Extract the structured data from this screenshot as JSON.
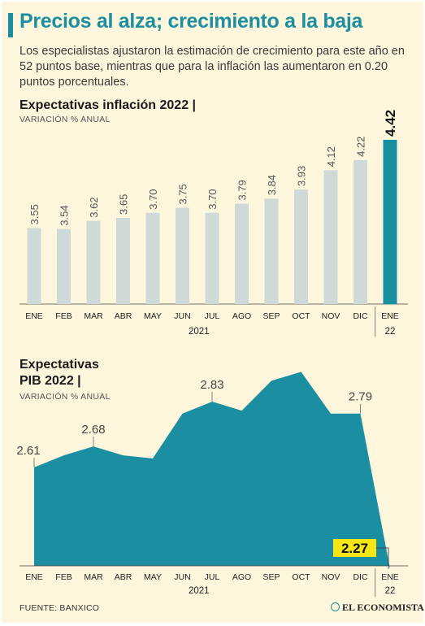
{
  "header": {
    "title": "Precios al alza; crecimiento a la baja",
    "subtitle": "Los especialistas ajustaron la estimación de crecimiento para este año en 52 puntos base, mientras que para la inflación las aumentaron en 0.20 puntos porcentuales."
  },
  "colors": {
    "accent": "#1b8fa1",
    "bar": "#cfd9d8",
    "highlight_label": "#f5e614",
    "background": "#fdf6dc"
  },
  "chart_data": [
    {
      "type": "bar",
      "title": "Expectativas inflación 2022 |",
      "subtitle": "VARIACIÓN % ANUAL",
      "categories": [
        "ENE",
        "FEB",
        "MAR",
        "ABR",
        "MAY",
        "JUN",
        "JUL",
        "AGO",
        "SEP",
        "OCT",
        "NOV",
        "DIC",
        "ENE"
      ],
      "values": [
        3.55,
        3.54,
        3.62,
        3.65,
        3.7,
        3.75,
        3.7,
        3.79,
        3.84,
        3.93,
        4.12,
        4.22,
        4.42
      ],
      "labels": [
        "3.55",
        "3.54",
        "3.62",
        "3.65",
        "3.70",
        "3.75",
        "3.70",
        "3.79",
        "3.84",
        "3.93",
        "4.12",
        "4.22",
        "4.42"
      ],
      "highlight_index": 12,
      "year_labels": [
        "2021",
        "22"
      ],
      "ylim": [
        2.8,
        4.5
      ]
    },
    {
      "type": "area",
      "title_line1": "Expectativas",
      "title_line2": "PIB 2022 |",
      "subtitle": "VARIACIÓN % ANUAL",
      "categories": [
        "ENE",
        "FEB",
        "MAR",
        "ABR",
        "MAY",
        "JUN",
        "JUL",
        "AGO",
        "SEP",
        "OCT",
        "NOV",
        "DIC",
        "ENE"
      ],
      "values": [
        2.61,
        2.65,
        2.68,
        2.65,
        2.64,
        2.79,
        2.83,
        2.8,
        2.9,
        2.93,
        2.79,
        2.79,
        2.27
      ],
      "value_labels": [
        {
          "index": 0,
          "text": "2.61"
        },
        {
          "index": 2,
          "text": "2.68"
        },
        {
          "index": 6,
          "text": "2.83"
        },
        {
          "index": 11,
          "text": "2.79"
        },
        {
          "index": 12,
          "text": "2.27"
        }
      ],
      "highlight_index": 12,
      "year_labels": [
        "2021",
        "22"
      ],
      "ylim": [
        2.28,
        2.95
      ]
    }
  ],
  "footer": {
    "source": "FUENTE: BANXICO",
    "logo": "EL ECONOMISTA"
  }
}
